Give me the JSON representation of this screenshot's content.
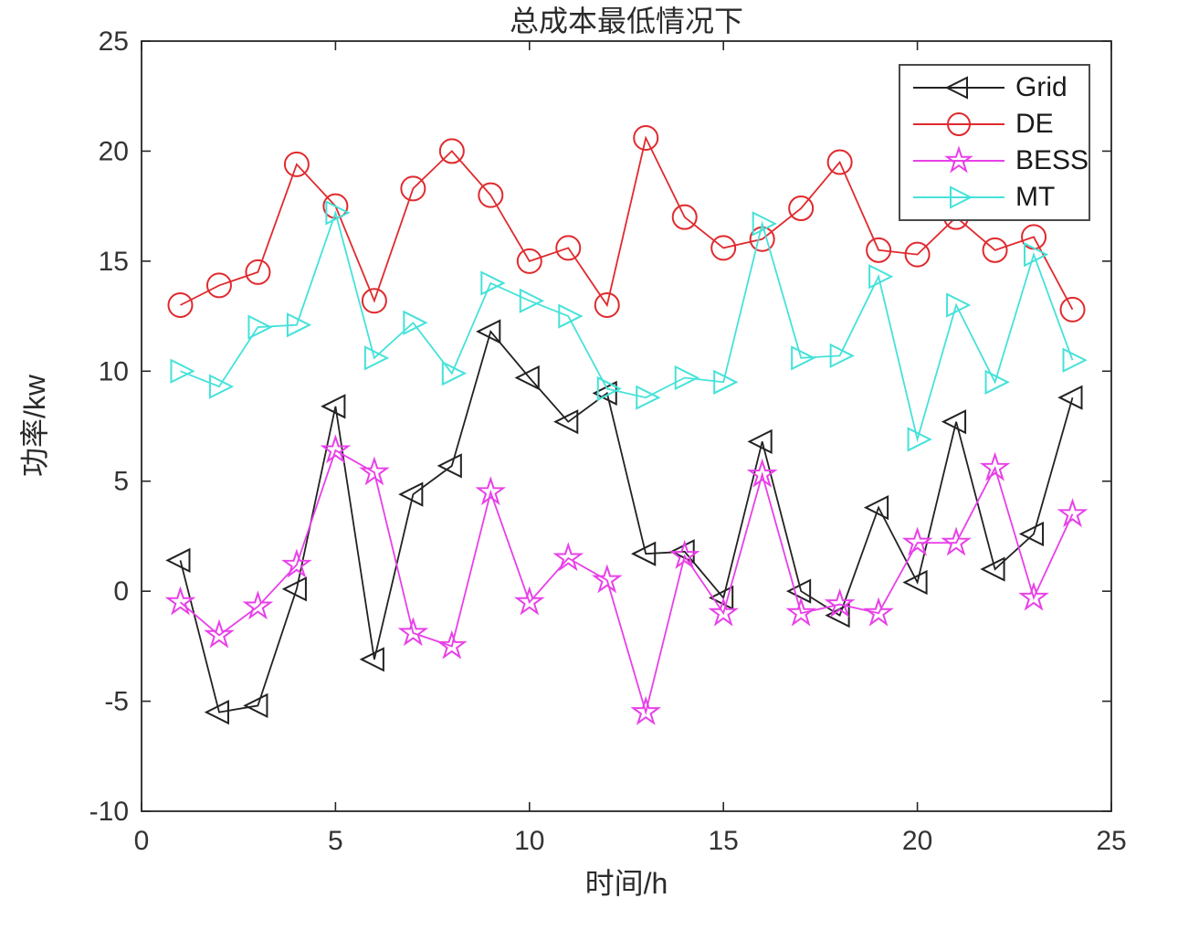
{
  "figure": {
    "title": "总成本最低情况下",
    "xlabel": "时间/h",
    "ylabel": "功率/kw"
  },
  "legend": {
    "items": [
      "Grid",
      "DE",
      "BESS",
      "MT"
    ]
  },
  "chart_data": {
    "type": "line",
    "title": "总成本最低情况下",
    "xlabel": "时间/h",
    "ylabel": "功率/kw",
    "xlim": [
      0,
      25
    ],
    "ylim": [
      -10,
      25
    ],
    "xticks": [
      0,
      5,
      10,
      15,
      20,
      25
    ],
    "yticks": [
      -10,
      -5,
      0,
      5,
      10,
      15,
      20,
      25
    ],
    "grid": false,
    "legend_position": "top-right",
    "axis_color": "#262626",
    "x": [
      1,
      2,
      3,
      4,
      5,
      6,
      7,
      8,
      9,
      10,
      11,
      12,
      13,
      14,
      15,
      16,
      17,
      18,
      19,
      20,
      21,
      22,
      23,
      24
    ],
    "series": [
      {
        "name": "Grid",
        "color": "#222222",
        "marker": "triangle-left",
        "values": [
          1.4,
          -5.5,
          -5.2,
          0.1,
          8.4,
          -3.1,
          4.4,
          5.7,
          11.8,
          9.7,
          7.7,
          9.0,
          1.7,
          1.8,
          -0.3,
          6.8,
          0.0,
          -1.1,
          3.8,
          0.4,
          7.7,
          1.0,
          2.6,
          8.8
        ]
      },
      {
        "name": "DE",
        "color": "#e02a2e",
        "marker": "circle",
        "values": [
          13.0,
          13.9,
          14.5,
          19.4,
          17.5,
          13.2,
          18.3,
          20.0,
          18.0,
          15.0,
          15.6,
          13.0,
          20.6,
          17.0,
          15.6,
          16.0,
          17.4,
          19.5,
          15.5,
          15.3,
          17.0,
          15.5,
          16.1,
          12.8
        ]
      },
      {
        "name": "BESS",
        "color": "#e840e8",
        "marker": "star",
        "values": [
          -0.5,
          -2.0,
          -0.7,
          1.2,
          6.4,
          5.4,
          -1.9,
          -2.5,
          4.5,
          -0.5,
          1.5,
          0.5,
          -5.5,
          1.6,
          -1.0,
          5.3,
          -1.0,
          -0.6,
          -1.0,
          2.2,
          2.2,
          5.6,
          -0.3,
          3.5
        ]
      },
      {
        "name": "MT",
        "color": "#45e2da",
        "marker": "triangle-right",
        "values": [
          10.0,
          9.3,
          12.0,
          12.1,
          17.2,
          10.6,
          12.2,
          9.9,
          14.0,
          13.2,
          12.5,
          9.2,
          8.8,
          9.7,
          9.5,
          16.7,
          10.6,
          10.7,
          14.3,
          6.9,
          13.0,
          9.5,
          15.3,
          10.5
        ]
      }
    ]
  }
}
